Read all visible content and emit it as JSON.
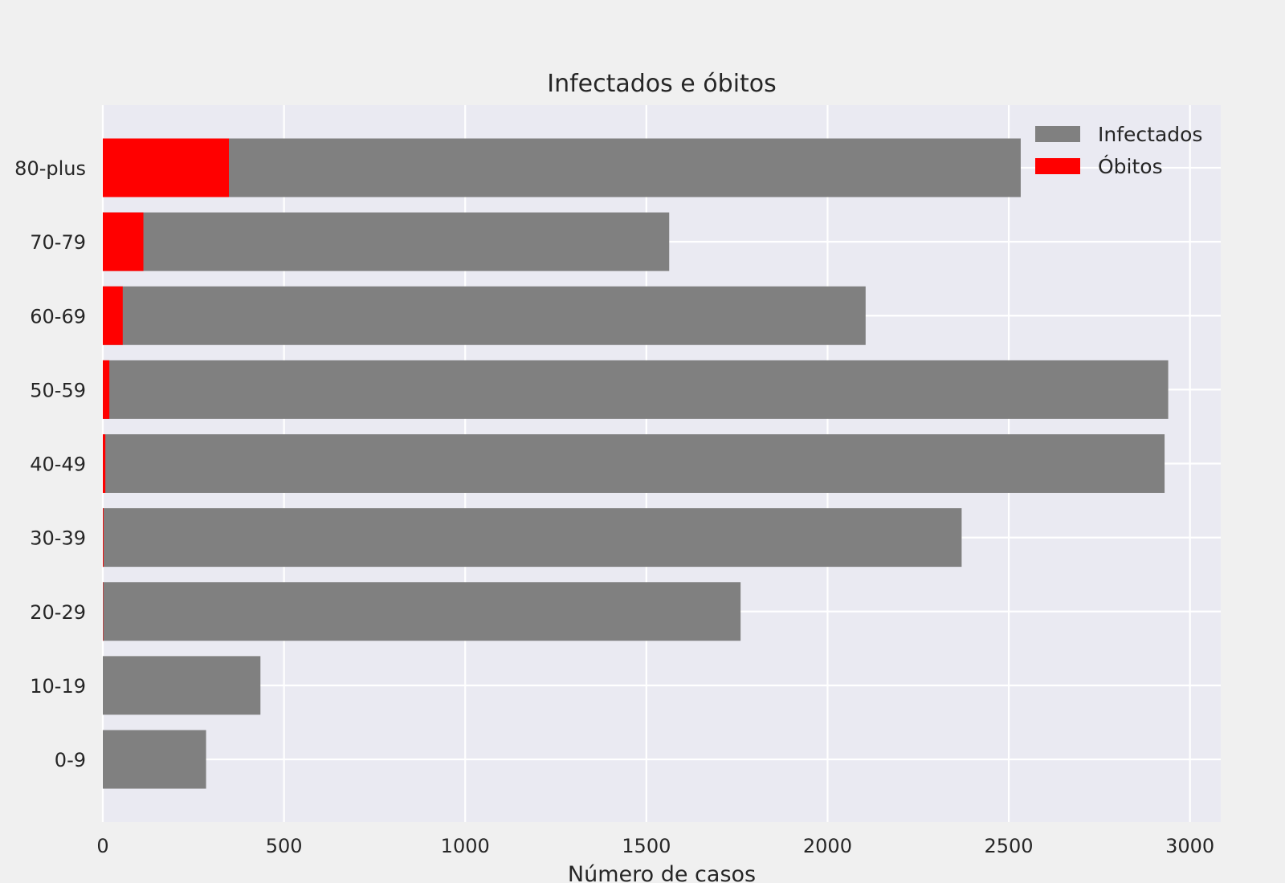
{
  "chart_data": {
    "type": "bar",
    "orientation": "horizontal",
    "stacking": "overlay",
    "title": "Infectados e óbitos",
    "xlabel": "Número de casos",
    "ylabel": "",
    "xlim": [
      0,
      3085
    ],
    "x_ticks": [
      0,
      500,
      1000,
      1500,
      2000,
      2500,
      3000
    ],
    "grid": true,
    "legend_position": "top-right",
    "categories": [
      "0-9",
      "10-19",
      "20-29",
      "30-39",
      "40-49",
      "50-59",
      "60-69",
      "70-79",
      "80-plus"
    ],
    "series": [
      {
        "name": "Infectados",
        "color": "#808080",
        "values": [
          285,
          435,
          1760,
          2370,
          2930,
          2940,
          2105,
          1563,
          2533
        ]
      },
      {
        "name": "Óbitos",
        "color": "#ff0000",
        "values": [
          0,
          0,
          1,
          2,
          7,
          18,
          55,
          112,
          348
        ]
      }
    ],
    "plot_background": "#eaeaf2",
    "figure_background": "#f0f0f0",
    "grid_color": "#ffffff"
  }
}
